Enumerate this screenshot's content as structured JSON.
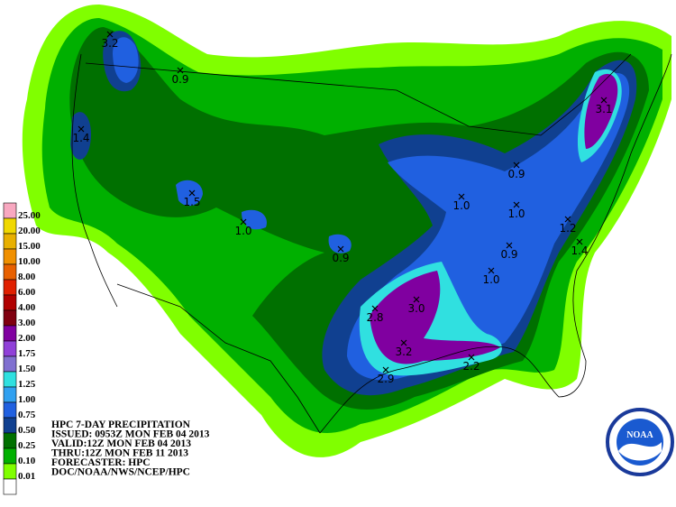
{
  "legend": {
    "levels": [
      {
        "label": "25.00",
        "color": "#f8a8c0"
      },
      {
        "label": "20.00",
        "color": "#f0d800"
      },
      {
        "label": "15.00",
        "color": "#e8b000"
      },
      {
        "label": "10.00",
        "color": "#f09000"
      },
      {
        "label": "8.00",
        "color": "#e86000"
      },
      {
        "label": "6.00",
        "color": "#e02000"
      },
      {
        "label": "4.00",
        "color": "#b00000"
      },
      {
        "label": "3.00",
        "color": "#800010"
      },
      {
        "label": "2.00",
        "color": "#8000a0"
      },
      {
        "label": "1.75",
        "color": "#9040d8"
      },
      {
        "label": "1.50",
        "color": "#8070d0"
      },
      {
        "label": "1.25",
        "color": "#30e0e0"
      },
      {
        "label": "1.00",
        "color": "#30a0f0"
      },
      {
        "label": "0.75",
        "color": "#2060e0"
      },
      {
        "label": "0.50",
        "color": "#104090"
      },
      {
        "label": "0.25",
        "color": "#007000"
      },
      {
        "label": "0.10",
        "color": "#00b000"
      },
      {
        "label": "0.01",
        "color": "#80ff00"
      }
    ]
  },
  "header": {
    "lines": [
      "HPC 7-DAY PRECIPITATION",
      "ISSUED: 0953Z MON FEB 04 2013",
      "VALID:12Z MON FEB 04 2013",
      "THRU:12Z MON FEB 11 2013",
      "FORECASTER: HPC",
      "DOC/NOAA/NWS/NCEP/HPC"
    ]
  },
  "maxima": [
    "3.2",
    "0.9",
    "1.4",
    "1.5",
    "1.0",
    "0.9",
    "2.8",
    "3.0",
    "3.2",
    "2.9",
    "2.2",
    "0.9",
    "1.0",
    "1.0",
    "0.9",
    "1.0",
    "1.2",
    "1.4",
    "3.1"
  ],
  "logo": {
    "text": "NOAA"
  }
}
